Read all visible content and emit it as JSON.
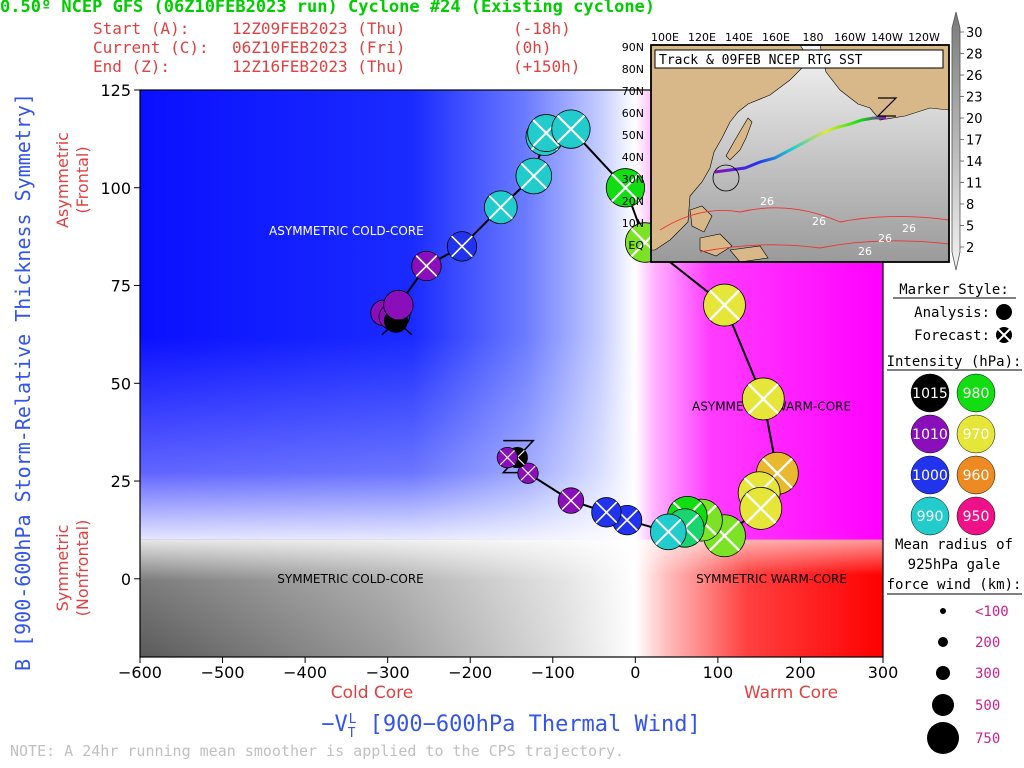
{
  "header": {
    "title": "0.50º NCEP GFS (06Z10FEB2023 run) Cyclone #24 (Existing cyclone)",
    "start_label": "Start (A):",
    "start_time": "12Z09FEB2023 (Thu)",
    "start_offset": "(-18h)",
    "current_label": "Current (C):",
    "current_time": "06Z10FEB2023 (Fri)",
    "current_offset": "(0h)",
    "end_label": "End (Z):",
    "end_time": "12Z16FEB2023 (Thu)",
    "end_offset": "(+150h)"
  },
  "note": "NOTE:  A 24hr running mean smoother is applied to the CPS trajectory.",
  "colors": {
    "title": "#00cc00",
    "info": "#e04040",
    "xlabel": "#3355ee",
    "ylabel": "#3355ee",
    "axis_red": "#e04040",
    "note": "#c0c0c0"
  },
  "chart_data": {
    "type": "scatter",
    "title": "0.50º NCEP GFS (06Z10FEB2023 run) Cyclone #24 (Existing cyclone)",
    "xlabel": "-Vt^L [900-600hPa Thermal Wind]",
    "xlabel_parts": {
      "prefix": "−V",
      "sub": "T",
      "sup": "L",
      "rest": " [900−600hPa Thermal Wind]"
    },
    "ylabel": "B [900-600hPa Storm-Relative Thickness Symmetry]",
    "xlim": [
      -600,
      300
    ],
    "ylim": [
      -20,
      125
    ],
    "x_ticks": [
      -600,
      -500,
      -400,
      -300,
      -200,
      -100,
      0,
      100,
      200,
      300
    ],
    "x_tick_labels": [
      "−600",
      "−500",
      "−400",
      "−300",
      "−200",
      "−100",
      "0",
      "100",
      "200",
      "300"
    ],
    "y_ticks": [
      0,
      25,
      50,
      75,
      100,
      125
    ],
    "y_tick_labels": [
      "0",
      "25",
      "50",
      "75",
      "100",
      "125"
    ],
    "x_side_labels": {
      "left": "Cold Core",
      "right": "Warm Core"
    },
    "y_side_labels": {
      "upper": "Asymmetric (Frontal)",
      "upper_1": "Asymmetric",
      "upper_2": "(Frontal)",
      "lower": "Symmetric (Nonfrontal)",
      "lower_1": "Symmetric",
      "lower_2": "(Nonfrontal)"
    },
    "quadrant_labels": [
      {
        "text": "ASYMMETRIC COLD-CORE",
        "x": -350,
        "y": 89
      },
      {
        "text": "ASYMMETRIC WARM-CORE",
        "x": 165,
        "y": 44
      },
      {
        "text": "SYMMETRIC COLD-CORE",
        "x": -345,
        "y": 0
      },
      {
        "text": "SYMMETRIC WARM-CORE",
        "x": 165,
        "y": 0
      }
    ],
    "threshold_b": 10,
    "points": [
      {
        "x": -305,
        "y": 68,
        "hpa": 1010,
        "type": "analysis",
        "r": 200
      },
      {
        "x": -295,
        "y": 67,
        "hpa": 1010,
        "type": "analysis",
        "r": 200
      },
      {
        "x": -290,
        "y": 66,
        "hpa": 1015,
        "type": "analysis",
        "r": 150
      },
      {
        "x": -287,
        "y": 70,
        "hpa": 1010,
        "type": "analysis",
        "r": 300
      },
      {
        "x": -253,
        "y": 80,
        "hpa": 1010,
        "type": "forecast",
        "r": 300
      },
      {
        "x": -210,
        "y": 85,
        "hpa": 1000,
        "type": "forecast",
        "r": 300
      },
      {
        "x": -163,
        "y": 95,
        "hpa": 990,
        "type": "forecast",
        "r": 400
      },
      {
        "x": -123,
        "y": 103,
        "hpa": 990,
        "type": "forecast",
        "r": 500
      },
      {
        "x": -110,
        "y": 113,
        "hpa": 990,
        "type": "forecast",
        "r": 550
      },
      {
        "x": -108,
        "y": 114,
        "hpa": 990,
        "type": "forecast",
        "r": 550
      },
      {
        "x": -78,
        "y": 115,
        "hpa": 990,
        "type": "forecast",
        "r": 600
      },
      {
        "x": -12,
        "y": 100,
        "hpa": 980,
        "type": "forecast",
        "r": 600
      },
      {
        "x": 12,
        "y": 86,
        "hpa": 975,
        "type": "forecast",
        "r": 650
      },
      {
        "x": 108,
        "y": 70,
        "hpa": 970,
        "type": "forecast",
        "r": 750
      },
      {
        "x": 155,
        "y": 46,
        "hpa": 970,
        "type": "forecast",
        "r": 750
      },
      {
        "x": 172,
        "y": 27,
        "hpa": 965,
        "type": "forecast",
        "r": 750
      },
      {
        "x": 150,
        "y": 22,
        "hpa": 970,
        "type": "forecast",
        "r": 750
      },
      {
        "x": 152,
        "y": 18,
        "hpa": 970,
        "type": "forecast",
        "r": 750
      },
      {
        "x": 108,
        "y": 11,
        "hpa": 975,
        "type": "forecast",
        "r": 750
      },
      {
        "x": 80,
        "y": 15,
        "hpa": 975,
        "type": "forecast",
        "r": 750
      },
      {
        "x": 63,
        "y": 16,
        "hpa": 980,
        "type": "forecast",
        "r": 650
      },
      {
        "x": 60,
        "y": 13,
        "hpa": 985,
        "type": "forecast",
        "r": 600
      },
      {
        "x": 40,
        "y": 12,
        "hpa": 990,
        "type": "forecast",
        "r": 500
      },
      {
        "x": -10,
        "y": 15,
        "hpa": 1000,
        "type": "forecast",
        "r": 300
      },
      {
        "x": -35,
        "y": 17,
        "hpa": 1000,
        "type": "forecast",
        "r": 300
      },
      {
        "x": -78,
        "y": 20,
        "hpa": 1010,
        "type": "forecast",
        "r": 200
      },
      {
        "x": -130,
        "y": 27,
        "hpa": 1010,
        "type": "forecast",
        "r": 100
      },
      {
        "x": -143,
        "y": 31,
        "hpa": 1015,
        "type": "forecast",
        "r": 100
      },
      {
        "x": -155,
        "y": 31,
        "hpa": 1010,
        "type": "forecast",
        "r": 100
      }
    ],
    "start_marker": {
      "letter": "A",
      "x": -290,
      "y": 66
    },
    "end_marker": {
      "letter": "Z",
      "x": -143,
      "y": 31
    }
  },
  "inset": {
    "title": "Track & 09FEB NCEP RTG SST",
    "lon_labels": [
      "100E",
      "120E",
      "140E",
      "160E",
      "180",
      "160W",
      "140W",
      "120W"
    ],
    "lat_labels": [
      "90N",
      "80N",
      "70N",
      "60N",
      "50N",
      "40N",
      "30N",
      "20N",
      "10N",
      "EQ"
    ],
    "sst_labels": [
      "26",
      "26",
      "26",
      "26",
      "26"
    ],
    "colorbar_labels": [
      "30",
      "28",
      "26",
      "23",
      "20",
      "17",
      "14",
      "11",
      "8",
      "5",
      "2"
    ]
  },
  "legend": {
    "marker_style_title": "Marker Style:",
    "analysis_label": "Analysis:",
    "forecast_label": "Forecast:",
    "intensity_title": "Intensity (hPa):",
    "intensity": [
      {
        "label": "1015",
        "color": "#000000",
        "text_color": "#ffffff"
      },
      {
        "label": "980",
        "color": "#11dd11",
        "text_color": "#ffffff"
      },
      {
        "label": "1010",
        "color": "#8a0fbb",
        "text_color": "#ffffff"
      },
      {
        "label": "970",
        "color": "#e6e63a",
        "text_color": "#ffffff"
      },
      {
        "label": "1000",
        "color": "#2233ee",
        "text_color": "#ffffff"
      },
      {
        "label": "960",
        "color": "#ee8a22",
        "text_color": "#ffffff"
      },
      {
        "label": "990",
        "color": "#22cccc",
        "text_color": "#ffffff"
      },
      {
        "label": "950",
        "color": "#ee1188",
        "text_color": "#ffffff"
      }
    ],
    "radius_title_1": "Mean radius of",
    "radius_title_2": "925hPa gale",
    "radius_title_3": "force wind (km):",
    "radius_labels": [
      "<100",
      "200",
      "300",
      "500",
      "750"
    ],
    "radius_label_color": "#cc2288"
  }
}
